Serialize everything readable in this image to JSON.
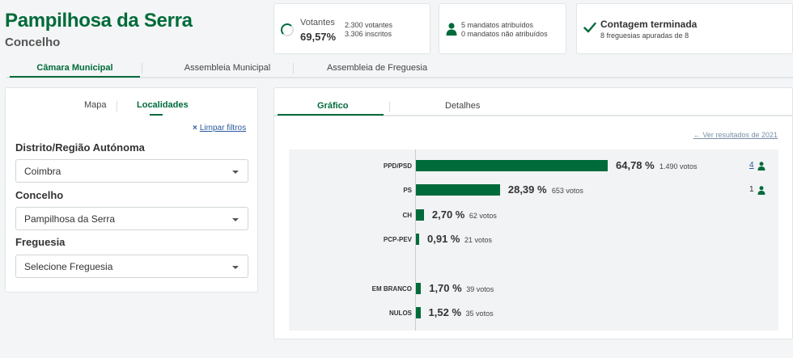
{
  "header": {
    "title": "Pampilhosa da Serra",
    "subtitle": "Concelho"
  },
  "stats": {
    "votantes_label": "Votantes",
    "votantes_pct": "69,57%",
    "votantes_count": "2.300 votantes",
    "inscritos_count": "3.306 inscritos",
    "mandatos_atribuidos": "5 mandatos atribuídos",
    "mandatos_nao_atribuidos": "0 mandatos não atribuídos",
    "contagem_title": "Contagem terminada",
    "contagem_sub": "8 freguesias apuradas de 8"
  },
  "top_tabs": [
    "Câmara Municipal",
    "Assembleia Municipal",
    "Assembleia de Freguesia"
  ],
  "left_panel": {
    "tabs": [
      "Mapa",
      "Localidades"
    ],
    "clear_filters": "Limpar filtros",
    "filters": [
      {
        "label": "Distrito/Região Autónoma",
        "value": "Coimbra"
      },
      {
        "label": "Concelho",
        "value": "Pampilhosa da Serra"
      },
      {
        "label": "Freguesia",
        "value": "Selecione Freguesia"
      }
    ]
  },
  "right_panel": {
    "tabs": [
      "Gráfico",
      "Detalhes"
    ],
    "prev_results_link": "Ver resultados de 2021"
  },
  "colors": {
    "brand": "#006b3a",
    "link": "#2a5a9c"
  },
  "chart_data": {
    "type": "bar",
    "orientation": "horizontal",
    "categories": [
      "PPD/PSD",
      "PS",
      "CH",
      "PCP-PEV",
      "EM BRANCO",
      "NULOS"
    ],
    "values": [
      64.78,
      28.39,
      2.7,
      0.91,
      1.7,
      1.52
    ],
    "pct_labels": [
      "64,78 %",
      "28,39 %",
      "2,70 %",
      "0,91 %",
      "1,70 %",
      "1,52 %"
    ],
    "vote_labels": [
      "1.490 votos",
      "653 votos",
      "62 votos",
      "21 votos",
      "39 votos",
      "35 votos"
    ],
    "mandates": [
      "4",
      "1",
      "",
      "",
      "",
      ""
    ]
  }
}
